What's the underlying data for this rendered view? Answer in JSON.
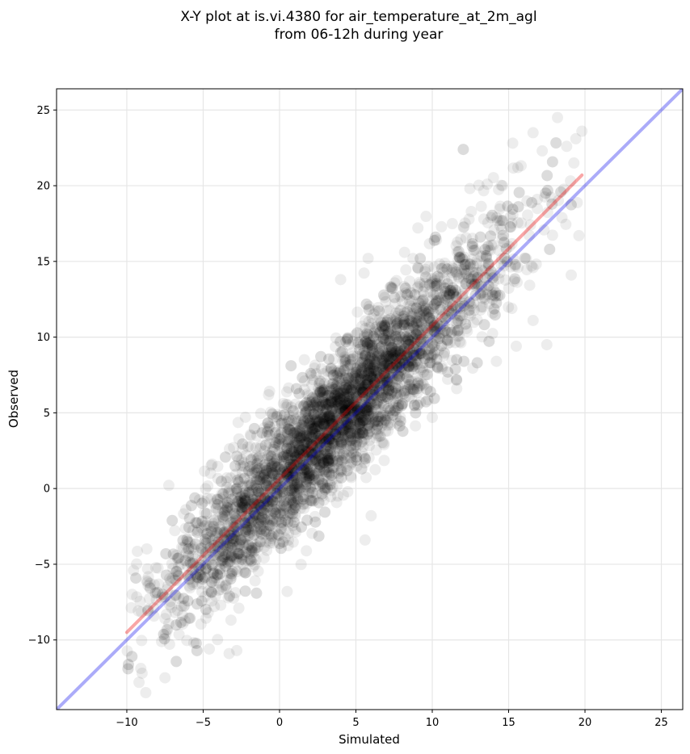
{
  "chart_data": {
    "type": "scatter",
    "title_lines": [
      "X-Y plot at is.vi.4380 for air_temperature_at_2m_agl",
      "from 06-12h during year"
    ],
    "xlabel": "Simulated",
    "ylabel": "Observed",
    "xlim": [
      -14.6,
      26.4
    ],
    "ylim": [
      -14.6,
      26.4
    ],
    "xticks": [
      -10,
      -5,
      0,
      5,
      10,
      15,
      20,
      25
    ],
    "yticks": [
      -10,
      -5,
      0,
      5,
      10,
      15,
      20,
      25
    ],
    "grid": true,
    "point_color": "#000000",
    "point_alpha": 0.07,
    "point_cloud": {
      "count": 4200,
      "x_range": [
        -10,
        20
      ],
      "relation": "observed ≈ 1.02·simulated + 0.7, spread ≈ 2.2"
    },
    "outlier_points": [
      {
        "x": -9.2,
        "y": -12.8
      },
      {
        "x": -9.0,
        "y": -12.2
      },
      {
        "x": -7.5,
        "y": -12.5
      },
      {
        "x": -3.3,
        "y": -10.9
      },
      {
        "x": -2.8,
        "y": -10.7
      },
      {
        "x": -4.6,
        "y": -10.6
      },
      {
        "x": 18.2,
        "y": 24.5
      },
      {
        "x": 19.8,
        "y": 23.6
      },
      {
        "x": 16.6,
        "y": 23.5
      },
      {
        "x": 19.4,
        "y": 23.1
      },
      {
        "x": 17.2,
        "y": 22.3
      },
      {
        "x": 18.8,
        "y": 22.6
      },
      {
        "x": 19.6,
        "y": 16.7
      },
      {
        "x": 19.1,
        "y": 14.1
      },
      {
        "x": 17.5,
        "y": 9.5
      },
      {
        "x": 16.6,
        "y": 11.1
      },
      {
        "x": 13.6,
        "y": 20.1
      },
      {
        "x": 14.6,
        "y": 20.0
      },
      {
        "x": 15.6,
        "y": 21.2
      },
      {
        "x": 0.5,
        "y": -6.8
      },
      {
        "x": 5.8,
        "y": 15.2
      },
      {
        "x": 4.0,
        "y": 13.8
      },
      {
        "x": -1.0,
        "y": 4.0
      },
      {
        "x": 10.0,
        "y": 4.7
      },
      {
        "x": 11.6,
        "y": 6.6
      },
      {
        "x": 6.0,
        "y": -1.8
      },
      {
        "x": 5.6,
        "y": -3.4
      },
      {
        "x": 14.2,
        "y": 8.4
      },
      {
        "x": 15.5,
        "y": 9.4
      }
    ],
    "series": [
      {
        "kind": "identity_line",
        "color": "#0000ee",
        "alpha": 0.33,
        "x": [
          -14.6,
          26.4
        ],
        "y": [
          -14.6,
          26.4
        ]
      },
      {
        "kind": "regression_line",
        "color": "#ee0000",
        "alpha": 0.35,
        "x": [
          -10.0,
          19.8
        ],
        "y": [
          -9.5,
          20.7
        ]
      }
    ]
  }
}
